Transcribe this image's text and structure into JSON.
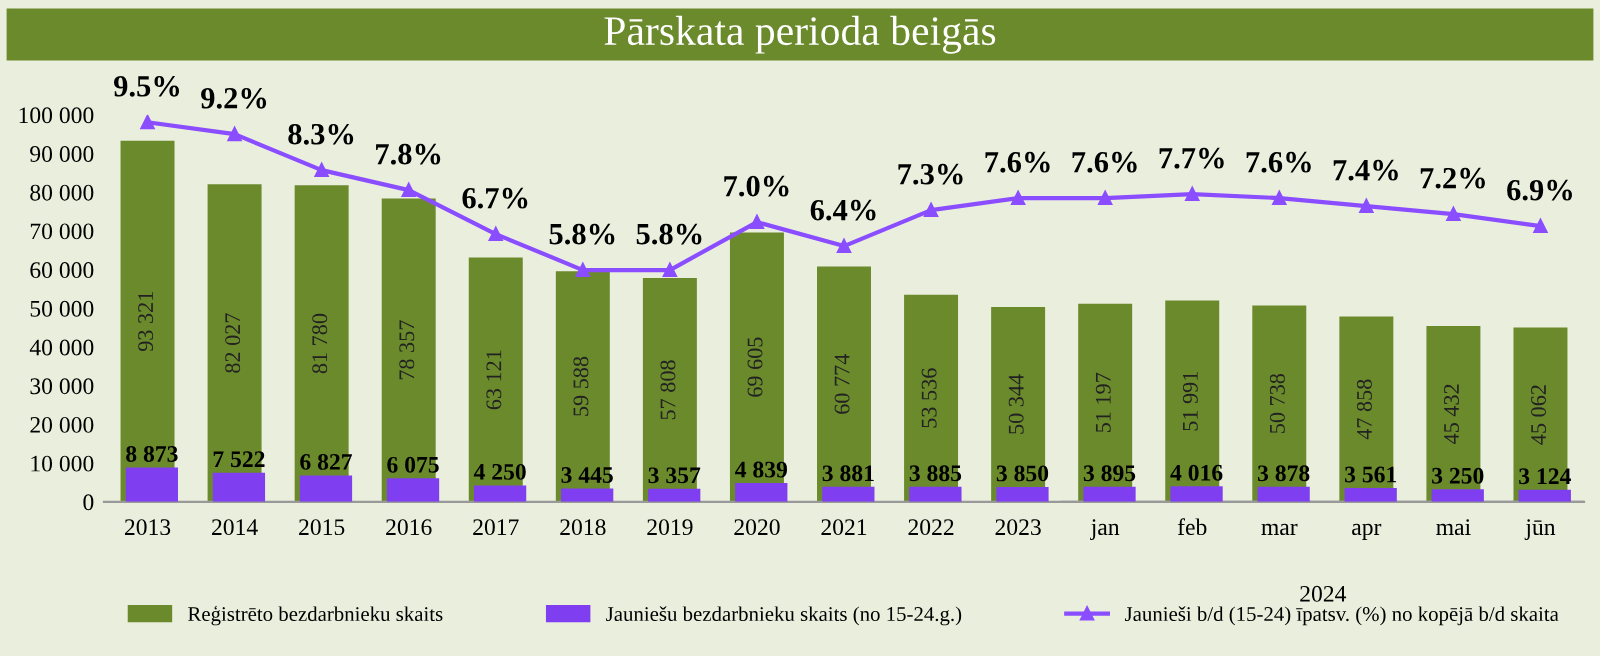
{
  "chart_data": {
    "type": "bar",
    "title": "Pārskata perioda beigās",
    "categories": [
      "2013",
      "2014",
      "2015",
      "2016",
      "2017",
      "2018",
      "2019",
      "2020",
      "2021",
      "2022",
      "2023",
      "jan",
      "feb",
      "mar",
      "apr",
      "mai",
      "jūn"
    ],
    "series": [
      {
        "name": "Reģistrēto bezdarbnieku skaits",
        "color": "#6b8a2c",
        "values": [
          93321,
          82027,
          81780,
          78357,
          63121,
          59588,
          57808,
          69605,
          60774,
          53536,
          50344,
          51197,
          51991,
          50738,
          47858,
          45432,
          45062
        ],
        "value_labels": [
          "93 321",
          "82 027",
          "81 780",
          "78 357",
          "63 121",
          "59 588",
          "57 808",
          "69 605",
          "60 774",
          "53 536",
          "50 344",
          "51 197",
          "51 991",
          "50 738",
          "47 858",
          "45 432",
          "45 062"
        ]
      },
      {
        "name": "Jauniešu bezdarbnieku skaits (no 15-24.g.)",
        "color": "#7f3ff0",
        "values": [
          8873,
          7522,
          6827,
          6075,
          4250,
          3445,
          3357,
          4839,
          3881,
          3885,
          3850,
          3895,
          4016,
          3878,
          3561,
          3250,
          3124
        ],
        "value_labels": [
          "8 873",
          "7 522",
          "6 827",
          "6 075",
          "4 250",
          "3 445",
          "3 357",
          "4 839",
          "3 881",
          "3 885",
          "3 850",
          "3 895",
          "4 016",
          "3 878",
          "3 561",
          "3 250",
          "3 124"
        ]
      },
      {
        "name": "Jaunieši b/d (15-24) īpatsv. (%) no kopējā b/d skaita",
        "type": "line",
        "axis": "y2",
        "color": "#8a4dff",
        "marker": "triangle",
        "values": [
          9.5,
          9.2,
          8.3,
          7.8,
          6.7,
          5.8,
          5.8,
          7.0,
          6.4,
          7.3,
          7.6,
          7.6,
          7.7,
          7.6,
          7.4,
          7.2,
          6.9
        ],
        "value_labels": [
          "9.5%",
          "9.2%",
          "8.3%",
          "7.8%",
          "6.7%",
          "5.8%",
          "5.8%",
          "7.0%",
          "6.4%",
          "7.3%",
          "7.6%",
          "7.6%",
          "7.7%",
          "7.6%",
          "7.4%",
          "7.2%",
          "6.9%"
        ]
      }
    ],
    "ylim": [
      0,
      100000
    ],
    "yticks": [
      {
        "value": 0,
        "label": "0"
      },
      {
        "value": 10000,
        "label": "10 000"
      },
      {
        "value": 20000,
        "label": "20 000"
      },
      {
        "value": 30000,
        "label": "30 000"
      },
      {
        "value": 40000,
        "label": "40 000"
      },
      {
        "value": 50000,
        "label": "50 000"
      },
      {
        "value": 60000,
        "label": "60 000"
      },
      {
        "value": 70000,
        "label": "70 000"
      },
      {
        "value": 80000,
        "label": "80 000"
      },
      {
        "value": 90000,
        "label": "90 000"
      },
      {
        "value": 100000,
        "label": "100 000"
      }
    ],
    "tick_labels": "x y",
    "annotations": [
      "2024"
    ],
    "grid": false,
    "legend": "bottom"
  }
}
